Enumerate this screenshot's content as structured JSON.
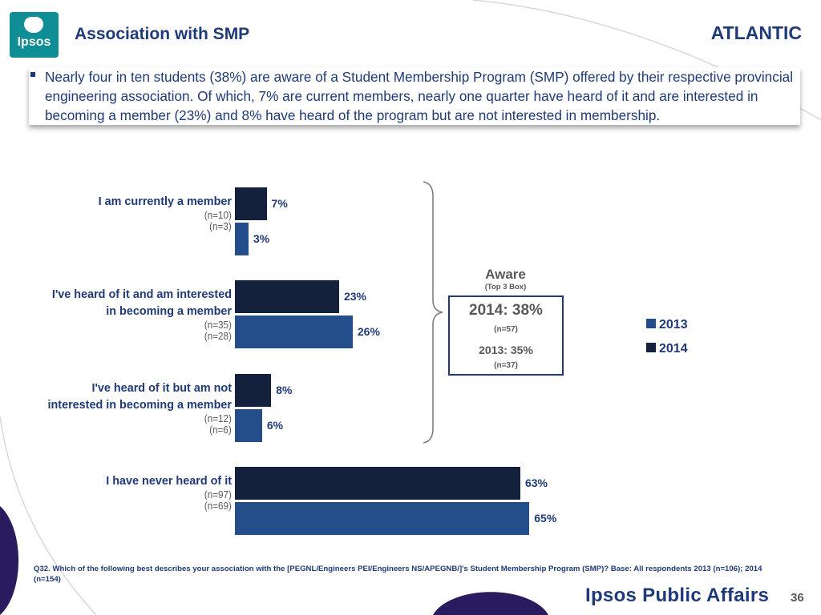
{
  "header": {
    "logo_text": "Ipsos",
    "title": "Association with SMP",
    "region": "ATLANTIC"
  },
  "summary": "Nearly four in ten students (38%) are aware of a Student Membership Program (SMP) offered by their respective provincial engineering association.  Of which, 7% are current members, nearly one quarter have heard of it and are interested in becoming a member (23%) and 8% have heard of the program but are not interested in membership.",
  "chart_data": {
    "type": "bar",
    "orientation": "horizontal",
    "categories": [
      "I am currently a member",
      "I've heard of it and am interested in becoming a member",
      "I've heard of it but am not interested in becoming a member",
      "I have never heard of it"
    ],
    "category_lines": [
      [
        "I am currently a member"
      ],
      [
        "I've heard of it and am interested",
        "in becoming a member"
      ],
      [
        "I've heard of it but am not",
        "interested in becoming a member"
      ],
      [
        "I have never heard of it"
      ]
    ],
    "series": [
      {
        "name": "2014",
        "values": [
          7,
          23,
          8,
          63
        ],
        "value_labels": [
          "7%",
          "23%",
          "8%",
          "63%"
        ],
        "n_labels": [
          "(n=10)",
          "(n=35)",
          "(n=12)",
          "(n=97)"
        ],
        "color": "#14213d"
      },
      {
        "name": "2013",
        "values": [
          3,
          26,
          6,
          65
        ],
        "value_labels": [
          "3%",
          "26%",
          "6%",
          "65%"
        ],
        "n_labels": [
          "(n=3)",
          "(n=28)",
          "(n=6)",
          "(n=69)"
        ],
        "color": "#234e8a"
      }
    ],
    "xlim": [
      0,
      100
    ],
    "legend": {
      "position": "right",
      "entries": [
        "2013",
        "2014"
      ]
    },
    "grid": false
  },
  "aware": {
    "title": "Aware",
    "subtitle": "(Top 3 Box)",
    "line_2014": "2014: 38%",
    "n_2014": "(n=57)",
    "line_2013": "2013: 35%",
    "n_2013": "(n=37)"
  },
  "footnote": "Q32. Which of the following best describes your association with the [PEGNL/Engineers PEI/Engineers NS/APEGNB/]'s Student Membership Program (SMP)? Base: All respondents 2013 (n=106); 2014 (n=154)",
  "footer": {
    "brand": "Ipsos Public Affairs",
    "page_number": "36"
  },
  "colors": {
    "accent": "#1f3a78",
    "dark_bar": "#14213d",
    "light_bar": "#234e8a",
    "logo_teal": "#0f8f95",
    "deco_purple": "#2a1a5e"
  }
}
